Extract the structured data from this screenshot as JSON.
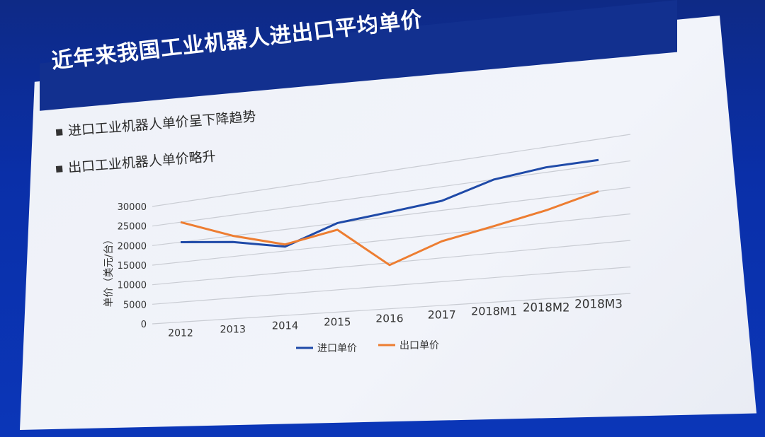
{
  "slide": {
    "title": "近年来我国工业机器人进出口平均单价",
    "bullets": [
      "进口工业机器人单价呈下降趋势",
      "出口工业机器人单价略升"
    ]
  },
  "colors": {
    "import": "#1f4aa8",
    "export": "#ed7d31",
    "grid": "#c9ccd3"
  },
  "chart_data": {
    "type": "line",
    "title": "",
    "xlabel": "",
    "ylabel": "单价（美元/台）",
    "categories": [
      "2012",
      "2013",
      "2014",
      "2015",
      "2016",
      "2017",
      "2018M1",
      "2018M2",
      "2018M3"
    ],
    "yticks": [
      "0",
      "5000",
      "10000",
      "15000",
      "20000",
      "25000",
      "30000"
    ],
    "ylim": [
      0,
      30000
    ],
    "grid": true,
    "legend": "bottom",
    "series": [
      {
        "name": "进口单价",
        "values": [
          20000,
          18500,
          16000,
          20000,
          21000,
          22000,
          25000,
          26000,
          26000
        ]
      },
      {
        "name": "出口单价",
        "values": [
          25000,
          20000,
          16500,
          18500,
          9500,
          13500,
          15500,
          17500,
          20000
        ]
      }
    ]
  }
}
